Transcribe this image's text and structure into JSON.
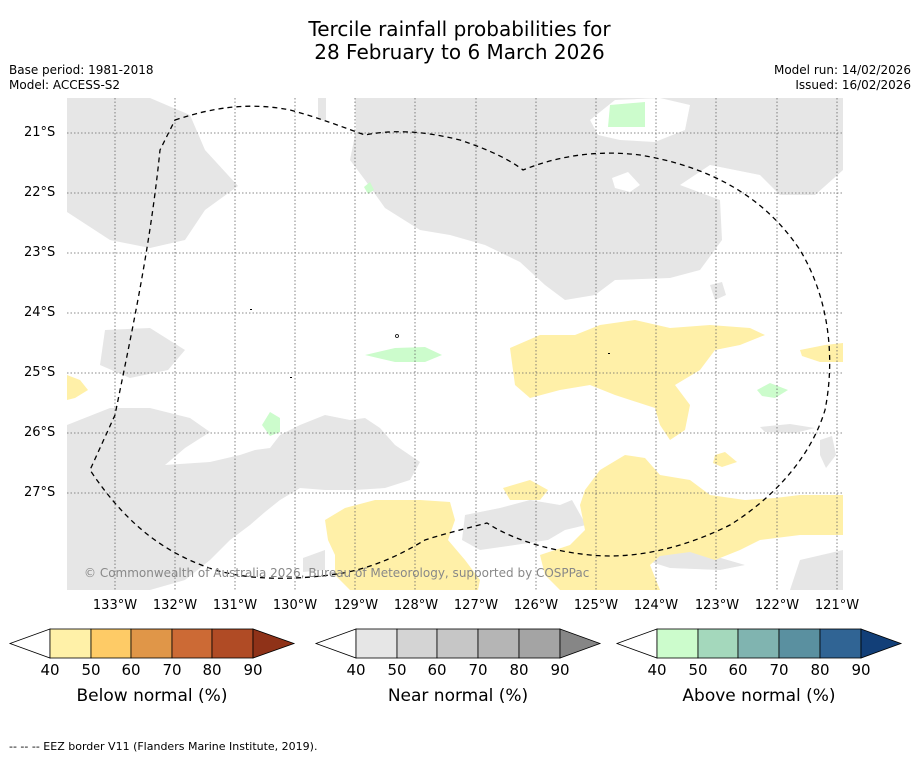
{
  "title_line1": "Tercile rainfall probabilities for",
  "title_line2": "28 February to 6 March 2026",
  "base_period": "Base period: 1981-2018",
  "model": "Model: ACCESS-S2",
  "model_run": "Model run: 14/02/2026",
  "issued": "Issued: 16/02/2026",
  "copyright": "© Commonwealth of Australia 2026, Bureau of Meteorology, supported by COSPPac",
  "footnote": "--  --  -- EEZ border V11 (Flanders Marine Institute, 2019).",
  "lat_labels": [
    "21°S",
    "22°S",
    "23°S",
    "24°S",
    "25°S",
    "26°S",
    "27°S"
  ],
  "lon_labels": [
    "133°W",
    "132°W",
    "131°W",
    "130°W",
    "129°W",
    "128°W",
    "127°W",
    "126°W",
    "125°W",
    "124°W",
    "123°W",
    "122°W",
    "121°W"
  ],
  "colorbars": [
    {
      "title": "Below normal (%)",
      "ticks": [
        "40",
        "50",
        "60",
        "70",
        "80",
        "90"
      ],
      "colors": [
        "#fff1a8",
        "#fecb66",
        "#e09648",
        "#cc6a35",
        "#b04b25",
        "#8f3218"
      ]
    },
    {
      "title": "Near normal (%)",
      "ticks": [
        "40",
        "50",
        "60",
        "70",
        "80",
        "90"
      ],
      "colors": [
        "#e6e6e6",
        "#d4d4d4",
        "#c6c6c6",
        "#b5b5b5",
        "#a4a4a4",
        "#868686"
      ]
    },
    {
      "title": "Above normal (%)",
      "ticks": [
        "40",
        "50",
        "60",
        "70",
        "80",
        "90"
      ],
      "colors": [
        "#ccfccc",
        "#a4d8bc",
        "#80b4b0",
        "#5a90a0",
        "#306494",
        "#123f78"
      ]
    }
  ],
  "colors": {
    "near_normal_fill": "#e6e6e6",
    "below_normal_fill": "#fff0a8",
    "above_normal_fill": "#ccfccc",
    "eez_border": "#000000"
  }
}
